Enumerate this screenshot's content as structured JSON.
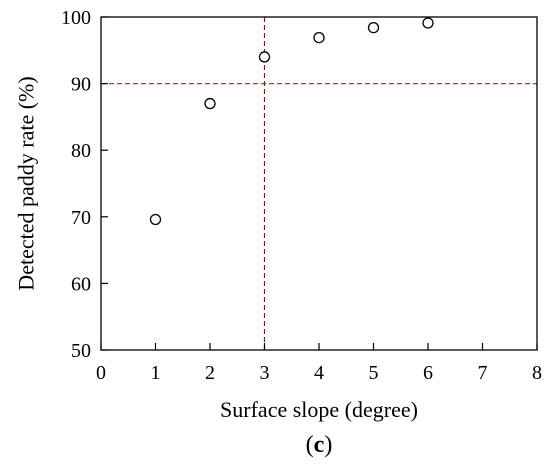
{
  "chart_data": {
    "type": "scatter",
    "title": "",
    "xlabel": "Surface slope (degree)",
    "ylabel": "Detected paddy rate (%)",
    "panel_label_open": "(",
    "panel_label_letter": "c",
    "panel_label_close": ")",
    "xlim": [
      0,
      8
    ],
    "ylim": [
      50,
      100
    ],
    "xticks": [
      0,
      1,
      2,
      3,
      4,
      5,
      6,
      7,
      8
    ],
    "yticks": [
      50,
      60,
      70,
      80,
      90,
      100
    ],
    "grid": false,
    "marker": "open-circle",
    "series": [
      {
        "x": [
          1,
          2,
          3,
          4,
          5,
          6
        ],
        "y": [
          69.6,
          87.0,
          94.0,
          96.9,
          98.4,
          99.1
        ]
      }
    ],
    "reference_lines": [
      {
        "orientation": "horizontal",
        "value": 90,
        "style": "dashed",
        "color": "#e8242a"
      },
      {
        "orientation": "vertical",
        "value": 3,
        "style": "dashed",
        "color": "#8b1a1a"
      }
    ]
  }
}
